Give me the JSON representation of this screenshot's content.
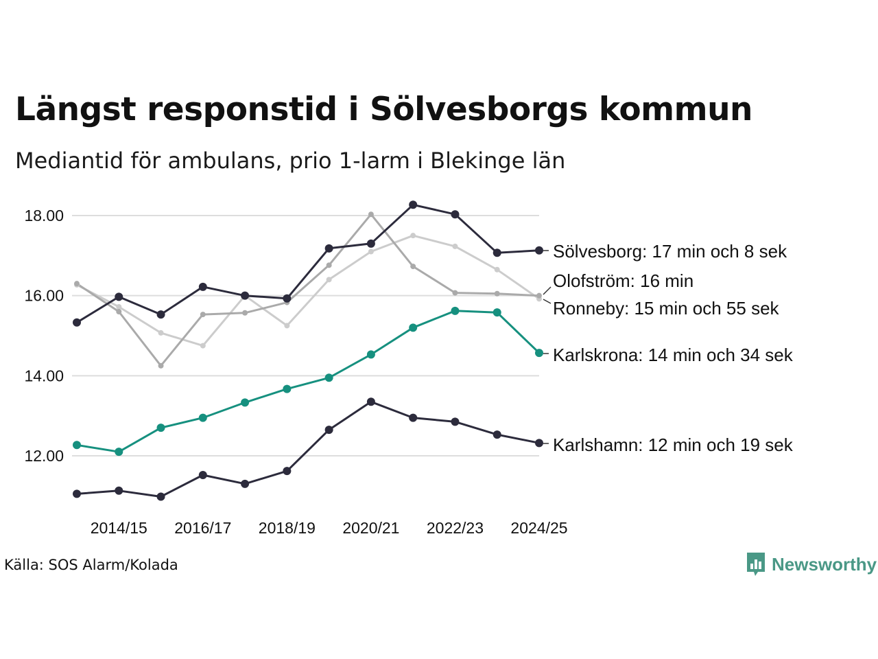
{
  "header": {
    "title": "Längst responstid i Sölvesborgs kommun",
    "subtitle": "Mediantid för ambulans, prio 1-larm i Blekinge län"
  },
  "footer": {
    "source": "Källa: SOS Alarm/Kolada",
    "brand": "Newsworthy"
  },
  "chart_data": {
    "type": "line",
    "title": "Längst responstid i Sölvesborgs kommun",
    "subtitle": "Mediantid för ambulans, prio 1-larm i Blekinge län",
    "xlabel": "",
    "ylabel": "",
    "ylim": [
      10.8,
      18.5
    ],
    "y_ticks": [
      12,
      14,
      16,
      18
    ],
    "y_tick_labels": [
      "12.00",
      "14.00",
      "16.00",
      "18.00"
    ],
    "x": [
      "2013/14",
      "2014/15",
      "2015/16",
      "2016/17",
      "2017/18",
      "2018/19",
      "2019/20",
      "2020/21",
      "2021/22",
      "2022/23",
      "2023/24",
      "2024/25"
    ],
    "x_tick_labels": [
      "2014/15",
      "2016/17",
      "2018/19",
      "2020/21",
      "2022/23",
      "2024/25"
    ],
    "grid": true,
    "series": [
      {
        "name": "Ronneby",
        "label": "Ronneby: 15 min och 55 sek",
        "color": "#cccccc",
        "values": [
          16.27,
          15.72,
          15.07,
          14.75,
          16.0,
          15.25,
          16.4,
          17.1,
          17.5,
          17.23,
          16.65,
          15.92
        ]
      },
      {
        "name": "Olofström",
        "label": "Olofström: 16 min",
        "color": "#aaaaaa",
        "values": [
          16.3,
          15.6,
          14.25,
          15.53,
          15.57,
          15.83,
          16.76,
          18.03,
          16.73,
          16.07,
          16.05,
          16.0
        ]
      },
      {
        "name": "Karlskrona",
        "label": "Karlskrona: 14 min och 34 sek",
        "color": "#16907f",
        "values": [
          12.27,
          12.1,
          12.7,
          12.95,
          13.33,
          13.67,
          13.95,
          14.53,
          15.2,
          15.62,
          15.58,
          14.57
        ]
      },
      {
        "name": "Karlshamn",
        "label": "Karlshamn: 12 min och 19 sek",
        "color": "#2c2b3c",
        "values": [
          11.05,
          11.13,
          10.98,
          11.52,
          11.3,
          11.62,
          12.65,
          13.35,
          12.95,
          12.85,
          12.53,
          12.32
        ]
      },
      {
        "name": "Sölvesborg",
        "label": "Sölvesborg: 17 min och 8 sek",
        "color": "#2c2b3c",
        "values": [
          15.33,
          15.97,
          15.53,
          16.22,
          16.0,
          15.93,
          17.18,
          17.3,
          18.27,
          18.03,
          17.07,
          17.13
        ]
      }
    ]
  }
}
